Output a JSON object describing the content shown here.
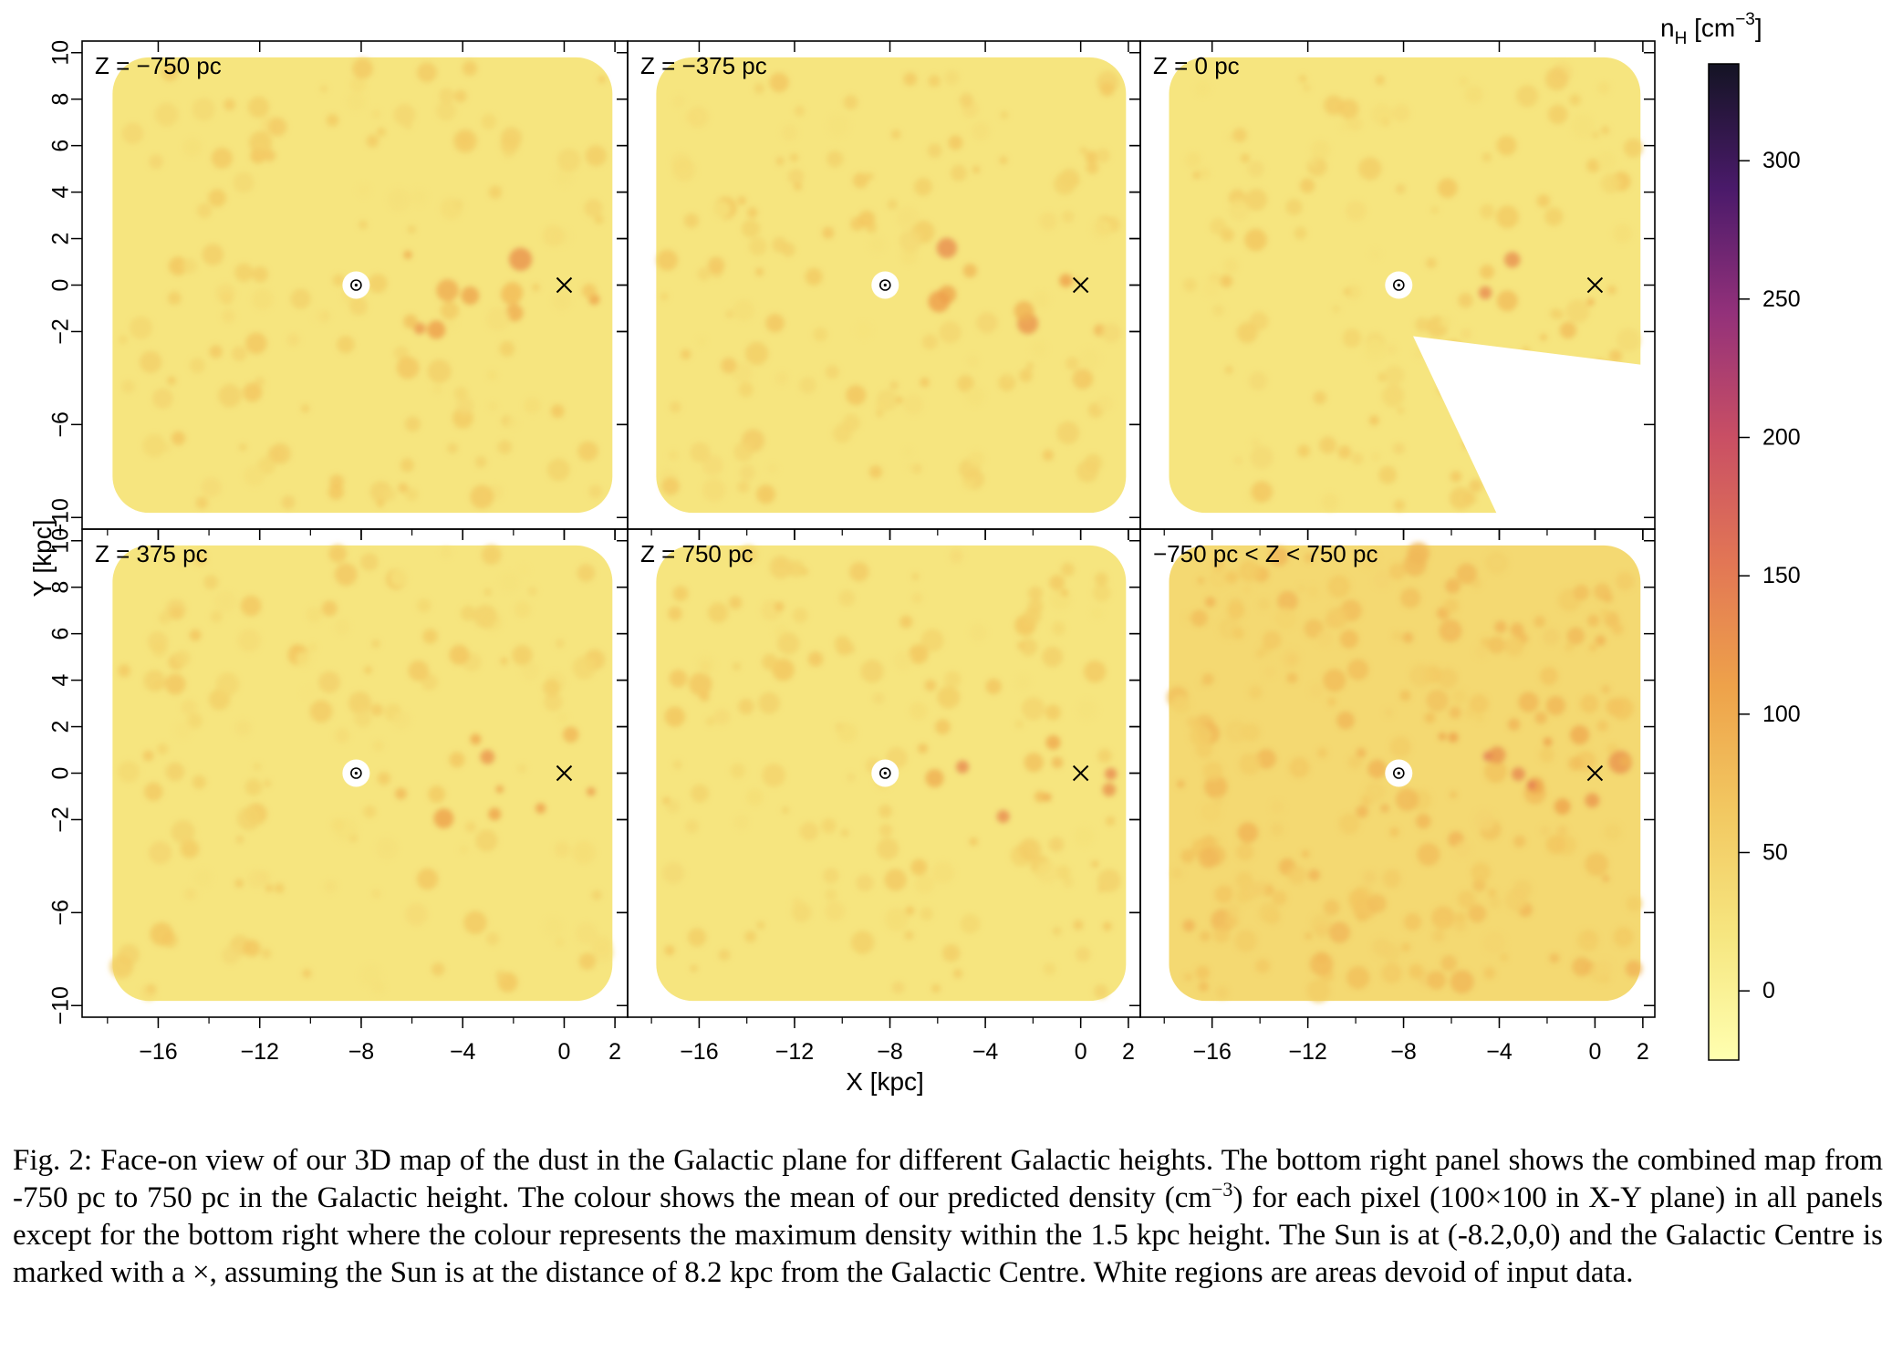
{
  "figure": {
    "panels": [
      {
        "label": "Z = −750 pc"
      },
      {
        "label": "Z = −375 pc"
      },
      {
        "label": "Z = 0 pc"
      },
      {
        "label": "Z = 375 pc"
      },
      {
        "label": "Z = 750 pc"
      },
      {
        "label": "−750 pc < Z < 750 pc"
      }
    ],
    "x_axis": {
      "title": "X [kpc]",
      "tick_values": [
        -16,
        -12,
        -8,
        -4,
        0,
        2
      ],
      "tick_labels": [
        "−16",
        "−12",
        "−8",
        "−4",
        "0",
        "2"
      ],
      "range": [
        -19,
        2.5
      ]
    },
    "y_axis": {
      "title": "Y [kpc]",
      "tick_values": [
        10,
        8,
        6,
        4,
        2,
        0,
        -2,
        -6,
        -10
      ],
      "tick_labels": [
        "10",
        "8",
        "6",
        "4",
        "2",
        "0",
        "−2",
        "−6",
        "−10"
      ],
      "range": [
        -10.5,
        10.5
      ]
    },
    "colorbar": {
      "title_main": "n",
      "title_sub": "H",
      "title_unit": " [cm",
      "title_exp": "−3",
      "title_close": "]",
      "range": [
        -25,
        335
      ],
      "tick_values": [
        0,
        50,
        100,
        150,
        200,
        250,
        300
      ],
      "tick_labels": [
        "0",
        "50",
        "100",
        "150",
        "200",
        "250",
        "300"
      ],
      "colors": [
        "#ffffb0",
        "#f6e680",
        "#f2c861",
        "#eea24a",
        "#e27655",
        "#c94f64",
        "#93317a",
        "#4a1a6a",
        "#141424"
      ]
    },
    "sun_position": [
      -8.2,
      0
    ],
    "galactic_centre": [
      0,
      0
    ]
  },
  "caption": {
    "p1": "Fig. 2: Face-on view of our 3D map of the dust in the Galactic plane for different Galactic heights. The bottom right panel shows the combined map from -750 pc to 750 pc in the Galactic height. The colour shows the mean of our predicted density (cm",
    "exp": "−3",
    "p2": ") for each pixel (100×100 in X-Y plane) in all panels except for the bottom right where the colour represents the maximum density within the 1.5 kpc height. The Sun is at (-8.2,0,0) and the Galactic Centre is marked with a ×, assuming the Sun is at the distance of 8.2 kpc from the Galactic Centre. White regions are areas devoid of input data."
  }
}
